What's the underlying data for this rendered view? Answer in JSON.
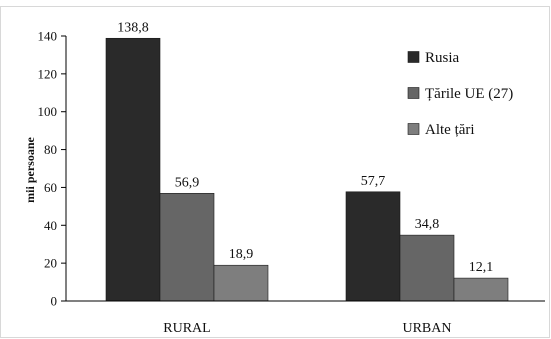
{
  "chart_data": {
    "type": "bar",
    "title": "",
    "xlabel": "",
    "ylabel": "mii persoane",
    "ylim": [
      0,
      140
    ],
    "yticks": [
      0,
      20,
      40,
      60,
      80,
      100,
      120,
      140
    ],
    "categories": [
      "RURAL",
      "URBAN"
    ],
    "series": [
      {
        "name": "Rusia",
        "values": [
          138.8,
          57.7
        ],
        "labels": [
          "138,8",
          "57,7"
        ],
        "color": "#2a2a2a"
      },
      {
        "name": "Țările UE (27)",
        "values": [
          56.9,
          34.8
        ],
        "labels": [
          "56,9",
          "34,8"
        ],
        "color": "#666666"
      },
      {
        "name": "Alte țări",
        "values": [
          18.9,
          12.1
        ],
        "labels": [
          "18,9",
          "12,1"
        ],
        "color": "#7e7e7e"
      }
    ],
    "legend": {
      "position": "top-right"
    },
    "grid": false
  }
}
